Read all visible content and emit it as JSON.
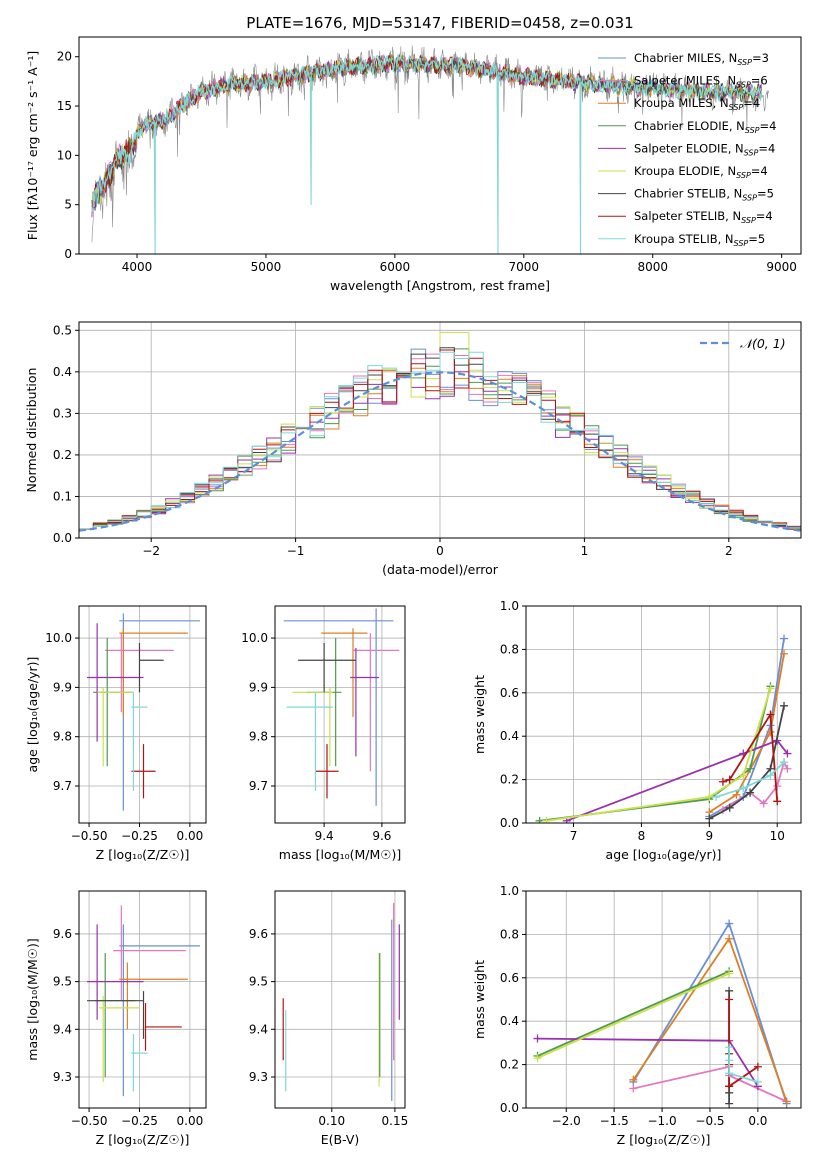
{
  "figure": {
    "title": "PLATE=1676, MJD=53147, FIBERID=0458, z=0.031"
  },
  "models": [
    {
      "name": "Chabrier MILES",
      "nssp": "3",
      "color": "#6a8fd8"
    },
    {
      "name": "Salpeter MILES",
      "nssp": "6",
      "color": "#e377c2"
    },
    {
      "name": "Kroupa MILES",
      "nssp": "4",
      "color": "#dd7f22"
    },
    {
      "name": "Chabrier ELODIE",
      "nssp": "4",
      "color": "#4f9a4f"
    },
    {
      "name": "Salpeter ELODIE",
      "nssp": "4",
      "color": "#9a30b0"
    },
    {
      "name": "Kroupa ELODIE",
      "nssp": "4",
      "color": "#c8e24a"
    },
    {
      "name": "Chabrier STELIB",
      "nssp": "5",
      "color": "#444444"
    },
    {
      "name": "Salpeter STELIB",
      "nssp": "4",
      "color": "#b01515"
    },
    {
      "name": "Kroupa STELIB",
      "nssp": "5",
      "color": "#7fd8d8"
    }
  ],
  "chart_data": [
    {
      "id": "spectrum",
      "type": "line",
      "title": "PLATE=1676, MJD=53147, FIBERID=0458, z=0.031",
      "xlabel": "wavelength [Angstrom, rest frame]",
      "ylabel": "Flux [fλ10⁻¹⁷ erg cm⁻² s⁻¹ A⁻¹]",
      "xlim": [
        3550,
        9150
      ],
      "ylim": [
        0,
        22
      ],
      "xticks": [
        4000,
        5000,
        6000,
        7000,
        8000,
        9000
      ],
      "yticks": [
        0,
        5,
        10,
        15,
        20
      ],
      "grid": false,
      "legend": "top-right",
      "continuum": [
        [
          3650,
          6.0
        ],
        [
          3750,
          8.0
        ],
        [
          3850,
          10.5
        ],
        [
          3950,
          11.5
        ],
        [
          4050,
          13.0
        ],
        [
          4200,
          13.5
        ],
        [
          4300,
          14.5
        ],
        [
          4400,
          15.5
        ],
        [
          4500,
          16.5
        ],
        [
          4700,
          17.2
        ],
        [
          5000,
          17.5
        ],
        [
          5300,
          18.2
        ],
        [
          5600,
          18.9
        ],
        [
          6000,
          19.3
        ],
        [
          6500,
          19.1
        ],
        [
          7000,
          18.0
        ],
        [
          7500,
          17.3
        ],
        [
          8000,
          16.8
        ],
        [
          8500,
          16.4
        ],
        [
          8900,
          16.3
        ]
      ],
      "data_range": [
        3650,
        8900
      ],
      "model_range": [
        3650,
        8850
      ],
      "model_cutoffs": [
        {
          "model": "Salpeter STELIB",
          "end": 7440
        }
      ],
      "absorption_dips": [
        {
          "x": 4140,
          "y": 0
        },
        {
          "x": 5350,
          "y": 5
        },
        {
          "x": 6800,
          "y": 0
        },
        {
          "x": 7440,
          "y": 0
        }
      ]
    },
    {
      "id": "residuals",
      "type": "histogram",
      "xlabel": "(data-model)/error",
      "ylabel": "Normed distribution",
      "xlim": [
        -2.5,
        2.5
      ],
      "ylim": [
        0,
        0.52
      ],
      "xticks": [
        -2,
        -1,
        0,
        1,
        2
      ],
      "yticks": [
        0.0,
        0.1,
        0.2,
        0.3,
        0.4,
        0.5
      ],
      "grid": true,
      "legend": "top-right",
      "reference_curve": "𝒩(0, 1)",
      "bin_width": 0.1,
      "bin_start": -2.5
    },
    {
      "id": "age-vs-Z",
      "type": "errorbar",
      "xlabel": "Z [log₁₀(Z/Z☉)]",
      "ylabel": "age  [log₁₀(age/yr)]",
      "xlim": [
        -0.55,
        0.08
      ],
      "ylim": [
        9.625,
        10.065
      ],
      "xticks": [
        -0.5,
        -0.25,
        0.0
      ],
      "yticks": [
        9.7,
        9.8,
        9.9,
        10.0
      ],
      "grid": true,
      "points": [
        {
          "model": "Chabrier MILES",
          "x": -0.15,
          "xerr": 0.2,
          "y": 10.035,
          "yerr": 0.0
        },
        {
          "model": "Chabrier MILES",
          "x": -0.33,
          "xerr": 0.0,
          "y": 9.85,
          "yerr": 0.2
        },
        {
          "model": "Salpeter MILES",
          "x": -0.25,
          "xerr": 0.17,
          "y": 9.975,
          "yerr": 0.0
        },
        {
          "model": "Salpeter MILES",
          "x": -0.34,
          "xerr": 0.0,
          "y": 9.93,
          "yerr": 0.08
        },
        {
          "model": "Kroupa MILES",
          "x": -0.18,
          "xerr": 0.17,
          "y": 10.01,
          "yerr": 0.0
        },
        {
          "model": "Kroupa MILES",
          "x": -0.33,
          "xerr": 0.0,
          "y": 9.93,
          "yerr": 0.09
        },
        {
          "model": "Chabrier ELODIE",
          "x": -0.38,
          "xerr": 0.1,
          "y": 9.89,
          "yerr": 0.0
        },
        {
          "model": "Chabrier ELODIE",
          "x": -0.41,
          "xerr": 0.0,
          "y": 9.87,
          "yerr": 0.13
        },
        {
          "model": "Salpeter ELODIE",
          "x": -0.37,
          "xerr": 0.14,
          "y": 9.92,
          "yerr": 0.0
        },
        {
          "model": "Salpeter ELODIE",
          "x": -0.46,
          "xerr": 0.0,
          "y": 9.91,
          "yerr": 0.12
        },
        {
          "model": "Kroupa ELODIE",
          "x": -0.37,
          "xerr": 0.09,
          "y": 9.89,
          "yerr": 0.0
        },
        {
          "model": "Kroupa ELODIE",
          "x": -0.43,
          "xerr": 0.0,
          "y": 9.82,
          "yerr": 0.08
        },
        {
          "model": "Chabrier STELIB",
          "x": -0.19,
          "xerr": 0.06,
          "y": 9.955,
          "yerr": 0.0
        },
        {
          "model": "Chabrier STELIB",
          "x": -0.25,
          "xerr": 0.0,
          "y": 9.94,
          "yerr": 0.05
        },
        {
          "model": "Salpeter STELIB",
          "x": -0.23,
          "xerr": 0.06,
          "y": 9.73,
          "yerr": 0.0
        },
        {
          "model": "Salpeter STELIB",
          "x": -0.23,
          "xerr": 0.0,
          "y": 9.73,
          "yerr": 0.055
        },
        {
          "model": "Kroupa STELIB",
          "x": -0.25,
          "xerr": 0.04,
          "y": 9.86,
          "yerr": 0.0
        },
        {
          "model": "Kroupa STELIB",
          "x": -0.28,
          "xerr": 0.0,
          "y": 9.79,
          "yerr": 0.1
        }
      ]
    },
    {
      "id": "age-vs-mass",
      "type": "errorbar",
      "xlabel": "mass [log₁₀(M/M☉)]",
      "ylabel": "",
      "xlim": [
        9.23,
        9.68
      ],
      "ylim": [
        9.625,
        10.065
      ],
      "xticks": [
        9.4,
        9.6
      ],
      "yticks": [
        9.7,
        9.8,
        9.9,
        10.0
      ],
      "grid": true,
      "points": [
        {
          "model": "Chabrier MILES",
          "x": 9.45,
          "xerr": 0.19,
          "y": 10.035,
          "yerr": 0.0
        },
        {
          "model": "Chabrier MILES",
          "x": 9.58,
          "xerr": 0.0,
          "y": 9.86,
          "yerr": 0.2
        },
        {
          "model": "Salpeter MILES",
          "x": 9.58,
          "xerr": 0.08,
          "y": 9.975,
          "yerr": 0.0
        },
        {
          "model": "Salpeter MILES",
          "x": 9.56,
          "xerr": 0.0,
          "y": 9.87,
          "yerr": 0.14
        },
        {
          "model": "Kroupa MILES",
          "x": 9.47,
          "xerr": 0.08,
          "y": 10.01,
          "yerr": 0.0
        },
        {
          "model": "Kroupa MILES",
          "x": 9.5,
          "xerr": 0.0,
          "y": 9.93,
          "yerr": 0.09
        },
        {
          "model": "Chabrier ELODIE",
          "x": 9.4,
          "xerr": 0.06,
          "y": 9.89,
          "yerr": 0.0
        },
        {
          "model": "Chabrier ELODIE",
          "x": 9.44,
          "xerr": 0.0,
          "y": 9.87,
          "yerr": 0.13
        },
        {
          "model": "Salpeter ELODIE",
          "x": 9.54,
          "xerr": 0.05,
          "y": 9.92,
          "yerr": 0.0
        },
        {
          "model": "Salpeter ELODIE",
          "x": 9.51,
          "xerr": 0.0,
          "y": 9.87,
          "yerr": 0.11
        },
        {
          "model": "Kroupa ELODIE",
          "x": 9.36,
          "xerr": 0.07,
          "y": 9.89,
          "yerr": 0.0
        },
        {
          "model": "Kroupa ELODIE",
          "x": 9.42,
          "xerr": 0.0,
          "y": 9.82,
          "yerr": 0.08
        },
        {
          "model": "Chabrier STELIB",
          "x": 9.41,
          "xerr": 0.1,
          "y": 9.955,
          "yerr": 0.0
        },
        {
          "model": "Chabrier STELIB",
          "x": 9.4,
          "xerr": 0.0,
          "y": 9.94,
          "yerr": 0.05
        },
        {
          "model": "Salpeter STELIB",
          "x": 9.41,
          "xerr": 0.04,
          "y": 9.73,
          "yerr": 0.0
        },
        {
          "model": "Salpeter STELIB",
          "x": 9.41,
          "xerr": 0.0,
          "y": 9.73,
          "yerr": 0.055
        },
        {
          "model": "Kroupa STELIB",
          "x": 9.35,
          "xerr": 0.08,
          "y": 9.86,
          "yerr": 0.0
        },
        {
          "model": "Kroupa STELIB",
          "x": 9.37,
          "xerr": 0.0,
          "y": 9.79,
          "yerr": 0.1
        }
      ]
    },
    {
      "id": "weight-vs-age",
      "type": "line",
      "xlabel": "age  [log₁₀(age/yr)]",
      "ylabel": "mass weight",
      "xlim": [
        6.3,
        10.35
      ],
      "ylim": [
        0,
        1.0
      ],
      "xticks": [
        7,
        8,
        9,
        10
      ],
      "yticks": [
        0.0,
        0.2,
        0.4,
        0.6,
        0.8,
        1.0
      ],
      "grid": true,
      "series": [
        {
          "name": "Chabrier MILES",
          "x": [
            9.0,
            9.5,
            9.9,
            10.1
          ],
          "y": [
            0.03,
            0.12,
            0.45,
            0.85
          ]
        },
        {
          "name": "Salpeter MILES",
          "x": [
            9.2,
            9.6,
            9.8,
            10.0,
            10.1,
            10.15
          ],
          "y": [
            0.06,
            0.14,
            0.09,
            0.17,
            0.28,
            0.25
          ]
        },
        {
          "name": "Kroupa MILES",
          "x": [
            9.0,
            9.4,
            9.9,
            10.1
          ],
          "y": [
            0.05,
            0.13,
            0.42,
            0.78
          ]
        },
        {
          "name": "Chabrier ELODIE",
          "x": [
            6.5,
            9.0,
            9.6,
            9.9
          ],
          "y": [
            0.01,
            0.11,
            0.25,
            0.63
          ]
        },
        {
          "name": "Salpeter ELODIE",
          "x": [
            6.9,
            9.5,
            10.0,
            10.15
          ],
          "y": [
            0.01,
            0.32,
            0.38,
            0.32
          ]
        },
        {
          "name": "Kroupa ELODIE",
          "x": [
            6.6,
            9.0,
            9.5,
            9.9
          ],
          "y": [
            0.01,
            0.12,
            0.22,
            0.62
          ]
        },
        {
          "name": "Chabrier STELIB",
          "x": [
            9.0,
            9.3,
            9.6,
            9.9,
            10.1
          ],
          "y": [
            0.02,
            0.07,
            0.14,
            0.25,
            0.54
          ]
        },
        {
          "name": "Salpeter STELIB",
          "x": [
            9.2,
            9.3,
            9.9,
            10.0
          ],
          "y": [
            0.19,
            0.2,
            0.5,
            0.1
          ]
        },
        {
          "name": "Kroupa STELIB",
          "x": [
            9.1,
            9.5,
            9.9,
            10.1
          ],
          "y": [
            0.12,
            0.16,
            0.22,
            0.28
          ]
        }
      ]
    },
    {
      "id": "mass-vs-Z",
      "type": "errorbar",
      "xlabel": "Z [log₁₀(Z/Z☉)]",
      "ylabel": "mass [log₁₀(M/M☉)]",
      "xlim": [
        -0.55,
        0.08
      ],
      "ylim": [
        9.235,
        9.69
      ],
      "xticks": [
        -0.5,
        -0.25,
        0.0
      ],
      "yticks": [
        9.3,
        9.4,
        9.5,
        9.6
      ],
      "grid": true,
      "points": [
        {
          "model": "Chabrier MILES",
          "x": -0.15,
          "xerr": 0.2,
          "y": 9.575,
          "yerr": 0.0
        },
        {
          "model": "Chabrier MILES",
          "x": -0.33,
          "xerr": 0.0,
          "y": 9.44,
          "yerr": 0.18
        },
        {
          "model": "Salpeter MILES",
          "x": -0.2,
          "xerr": 0.18,
          "y": 9.565,
          "yerr": 0.0
        },
        {
          "model": "Salpeter MILES",
          "x": -0.34,
          "xerr": 0.0,
          "y": 9.56,
          "yerr": 0.1
        },
        {
          "model": "Kroupa MILES",
          "x": -0.18,
          "xerr": 0.17,
          "y": 9.505,
          "yerr": 0.0
        },
        {
          "model": "Kroupa MILES",
          "x": -0.31,
          "xerr": 0.0,
          "y": 9.47,
          "yerr": 0.07
        },
        {
          "model": "Chabrier ELODIE",
          "x": -0.37,
          "xerr": 0.1,
          "y": 9.46,
          "yerr": 0.0
        },
        {
          "model": "Chabrier ELODIE",
          "x": -0.42,
          "xerr": 0.0,
          "y": 9.43,
          "yerr": 0.13
        },
        {
          "model": "Salpeter ELODIE",
          "x": -0.37,
          "xerr": 0.14,
          "y": 9.5,
          "yerr": 0.0
        },
        {
          "model": "Salpeter ELODIE",
          "x": -0.46,
          "xerr": 0.0,
          "y": 9.52,
          "yerr": 0.1
        },
        {
          "model": "Kroupa ELODIE",
          "x": -0.35,
          "xerr": 0.1,
          "y": 9.445,
          "yerr": 0.0
        },
        {
          "model": "Kroupa ELODIE",
          "x": -0.43,
          "xerr": 0.0,
          "y": 9.38,
          "yerr": 0.09
        },
        {
          "model": "Chabrier STELIB",
          "x": -0.37,
          "xerr": 0.14,
          "y": 9.46,
          "yerr": 0.0
        },
        {
          "model": "Chabrier STELIB",
          "x": -0.23,
          "xerr": 0.0,
          "y": 9.43,
          "yerr": 0.05
        },
        {
          "model": "Salpeter STELIB",
          "x": -0.13,
          "xerr": 0.09,
          "y": 9.405,
          "yerr": 0.0
        },
        {
          "model": "Salpeter STELIB",
          "x": -0.22,
          "xerr": 0.0,
          "y": 9.405,
          "yerr": 0.05
        },
        {
          "model": "Kroupa STELIB",
          "x": -0.25,
          "xerr": 0.04,
          "y": 9.35,
          "yerr": 0.0
        },
        {
          "model": "Kroupa STELIB",
          "x": -0.28,
          "xerr": 0.0,
          "y": 9.33,
          "yerr": 0.06
        }
      ]
    },
    {
      "id": "mass-vs-EBV",
      "type": "errorbar",
      "xlabel": "E(B-V)",
      "ylabel": "",
      "xlim": [
        0.055,
        0.158
      ],
      "ylim": [
        9.235,
        9.69
      ],
      "xticks": [
        0.1,
        0.15
      ],
      "yticks": [
        9.3,
        9.4,
        9.5,
        9.6
      ],
      "grid": true,
      "points": [
        {
          "model": "Salpeter STELIB",
          "x": 0.0615,
          "xerr": 0.0,
          "y": 9.4,
          "yerr": 0.065
        },
        {
          "model": "Kroupa STELIB",
          "x": 0.0635,
          "xerr": 0.0,
          "y": 9.355,
          "yerr": 0.085
        },
        {
          "model": "Kroupa ELODIE",
          "x": 0.1375,
          "xerr": 0.0,
          "y": 9.42,
          "yerr": 0.14
        },
        {
          "model": "Chabrier ELODIE",
          "x": 0.138,
          "xerr": 0.0,
          "y": 9.43,
          "yerr": 0.13
        },
        {
          "model": "Chabrier MILES",
          "x": 0.1475,
          "xerr": 0.0,
          "y": 9.44,
          "yerr": 0.19
        },
        {
          "model": "Salpeter MILES",
          "x": 0.149,
          "xerr": 0.0,
          "y": 9.5,
          "yerr": 0.165
        },
        {
          "model": "Salpeter ELODIE",
          "x": 0.1535,
          "xerr": 0.0,
          "y": 9.52,
          "yerr": 0.1
        }
      ]
    },
    {
      "id": "weight-vs-Z",
      "type": "line",
      "xlabel": "Z [log₁₀(Z/Z☉)]",
      "ylabel": "mass weight",
      "xlim": [
        -2.42,
        0.45
      ],
      "ylim": [
        0,
        1.0
      ],
      "xticks": [
        -2.0,
        -1.5,
        -1.0,
        -0.5,
        0.0
      ],
      "yticks": [
        0.0,
        0.2,
        0.4,
        0.6,
        0.8,
        1.0
      ],
      "grid": true,
      "series": [
        {
          "name": "Chabrier MILES",
          "x": [
            -1.3,
            -0.3,
            0.3
          ],
          "y": [
            0.12,
            0.85,
            0.02
          ]
        },
        {
          "name": "Salpeter MILES",
          "x": [
            -1.3,
            -0.3,
            -0.3,
            0.3
          ],
          "y": [
            0.09,
            0.19,
            0.15,
            0.03
          ]
        },
        {
          "name": "Kroupa MILES",
          "x": [
            -1.3,
            -0.3,
            0.3
          ],
          "y": [
            0.13,
            0.78,
            0.03
          ]
        },
        {
          "name": "Chabrier ELODIE",
          "x": [
            -2.3,
            -0.3
          ],
          "y": [
            0.24,
            0.63
          ]
        },
        {
          "name": "Salpeter ELODIE",
          "x": [
            -2.3,
            -0.3,
            0.0
          ],
          "y": [
            0.32,
            0.31,
            0.1
          ]
        },
        {
          "name": "Kroupa ELODIE",
          "x": [
            -2.3,
            -0.3
          ],
          "y": [
            0.23,
            0.62
          ]
        },
        {
          "name": "Chabrier STELIB",
          "x": [
            -0.3,
            -0.3,
            -0.3,
            -0.3
          ],
          "y": [
            0.54,
            0.25,
            0.07,
            0.02
          ]
        },
        {
          "name": "Salpeter STELIB",
          "x": [
            -0.3,
            -0.3,
            -0.3,
            0.0,
            -0.3
          ],
          "y": [
            0.5,
            0.2,
            0.1,
            0.19,
            0.1
          ]
        },
        {
          "name": "Kroupa STELIB",
          "x": [
            -0.3,
            -0.3,
            -0.3,
            0.0
          ],
          "y": [
            0.28,
            0.22,
            0.16,
            0.12
          ]
        }
      ]
    }
  ]
}
